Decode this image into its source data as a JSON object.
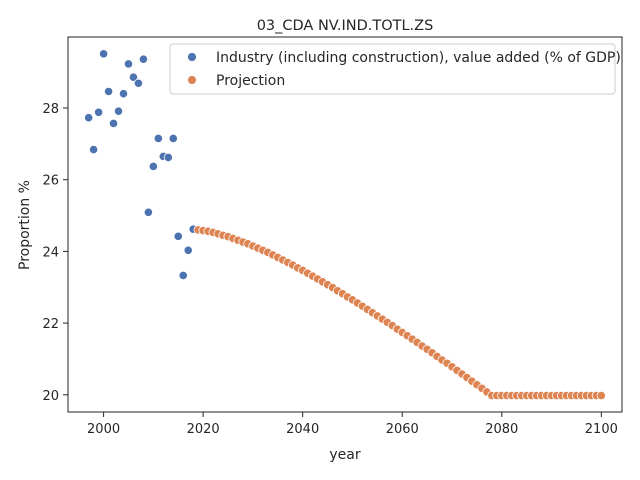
{
  "chart_data": {
    "type": "scatter",
    "title": "03_CDA NV.IND.TOTL.ZS",
    "xlabel": "year",
    "ylabel": "Proportion %",
    "xlim": [
      1992.85,
      2104.15
    ],
    "ylim": [
      19.52,
      29.98
    ],
    "x_ticks": [
      2000,
      2020,
      2040,
      2060,
      2080,
      2100
    ],
    "y_ticks": [
      20,
      22,
      24,
      26,
      28
    ],
    "grid": false,
    "legend_position": "top-right",
    "series": [
      {
        "name": "Industry (including construction), value added (% of GDP)",
        "color": "#4c72b0",
        "x": [
          1997,
          1998,
          1999,
          2000,
          2001,
          2002,
          2003,
          2004,
          2005,
          2006,
          2007,
          2008,
          2009,
          2010,
          2011,
          2012,
          2013,
          2014,
          2015,
          2016,
          2017,
          2018
        ],
        "y": [
          27.73,
          26.84,
          27.88,
          29.51,
          28.46,
          27.57,
          27.91,
          28.4,
          29.23,
          28.86,
          28.69,
          29.36,
          25.09,
          26.37,
          27.15,
          26.65,
          26.62,
          27.15,
          24.42,
          23.33,
          24.03,
          24.62
        ]
      },
      {
        "name": "Projection",
        "color": "#dd8452",
        "x": [
          2019,
          2020,
          2021,
          2022,
          2023,
          2024,
          2025,
          2026,
          2027,
          2028,
          2029,
          2030,
          2031,
          2032,
          2033,
          2034,
          2035,
          2036,
          2037,
          2038,
          2039,
          2040,
          2041,
          2042,
          2043,
          2044,
          2045,
          2046,
          2047,
          2048,
          2049,
          2050,
          2051,
          2052,
          2053,
          2054,
          2055,
          2056,
          2057,
          2058,
          2059,
          2060,
          2061,
          2062,
          2063,
          2064,
          2065,
          2066,
          2067,
          2068,
          2069,
          2070,
          2071,
          2072,
          2073,
          2074,
          2075,
          2076,
          2077,
          2078,
          2079,
          2080,
          2081,
          2082,
          2083,
          2084,
          2085,
          2086,
          2087,
          2088,
          2089,
          2090,
          2091,
          2092,
          2093,
          2094,
          2095,
          2096,
          2097,
          2098,
          2099,
          2100
        ],
        "y": [
          24.6,
          24.58,
          24.56,
          24.53,
          24.49,
          24.45,
          24.41,
          24.36,
          24.31,
          24.26,
          24.21,
          24.15,
          24.09,
          24.03,
          23.97,
          23.9,
          23.83,
          23.76,
          23.69,
          23.62,
          23.54,
          23.47,
          23.39,
          23.31,
          23.23,
          23.15,
          23.07,
          22.99,
          22.9,
          22.82,
          22.73,
          22.65,
          22.56,
          22.47,
          22.38,
          22.29,
          22.2,
          22.11,
          22.02,
          21.93,
          21.83,
          21.74,
          21.65,
          21.55,
          21.46,
          21.36,
          21.27,
          21.17,
          21.07,
          20.97,
          20.88,
          20.78,
          20.68,
          20.58,
          20.48,
          20.38,
          20.28,
          20.18,
          20.08,
          19.98,
          19.98,
          19.98,
          19.98,
          19.98,
          19.98,
          19.98,
          19.98,
          19.98,
          19.98,
          19.98,
          19.98,
          19.98,
          19.98,
          19.98,
          19.98,
          19.98,
          19.98,
          19.98,
          19.98,
          19.98,
          19.98,
          19.98
        ]
      }
    ]
  }
}
